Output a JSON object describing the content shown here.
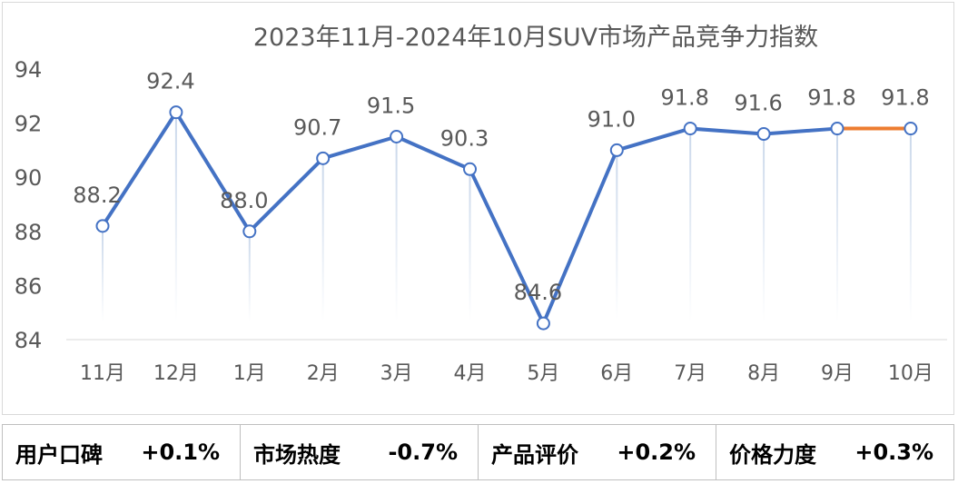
{
  "chart_data": {
    "type": "line",
    "title": "2023年11月-2024年10月SUV市场产品竞争力指数",
    "categories": [
      "11月",
      "12月",
      "1月",
      "2月",
      "3月",
      "4月",
      "5月",
      "6月",
      "7月",
      "8月",
      "9月",
      "10月"
    ],
    "series": [
      {
        "values": [
          88.2,
          92.4,
          88.0,
          90.7,
          91.5,
          90.3,
          84.6,
          91.0,
          91.8,
          91.6,
          91.8,
          91.8
        ]
      }
    ],
    "data_labels": [
      "88.2",
      "92.4",
      "88.0",
      "90.7",
      "91.5",
      "90.3",
      "84.6",
      "91.0",
      "91.8",
      "91.6",
      "91.8",
      "91.8"
    ],
    "y_ticks": [
      "84",
      "86",
      "88",
      "90",
      "92",
      "94"
    ],
    "ylim": [
      84,
      94
    ],
    "line_color": "#4472c4",
    "last_segment_color": "#ed7d31",
    "drop_line_color": "#c9d7ea",
    "grid": false
  },
  "metrics": [
    {
      "label": "用户口碑",
      "value": "+0.1%"
    },
    {
      "label": "市场热度",
      "value": "-0.7%"
    },
    {
      "label": "产品评价",
      "value": "+0.2%"
    },
    {
      "label": "价格力度",
      "value": "+0.3%"
    }
  ]
}
